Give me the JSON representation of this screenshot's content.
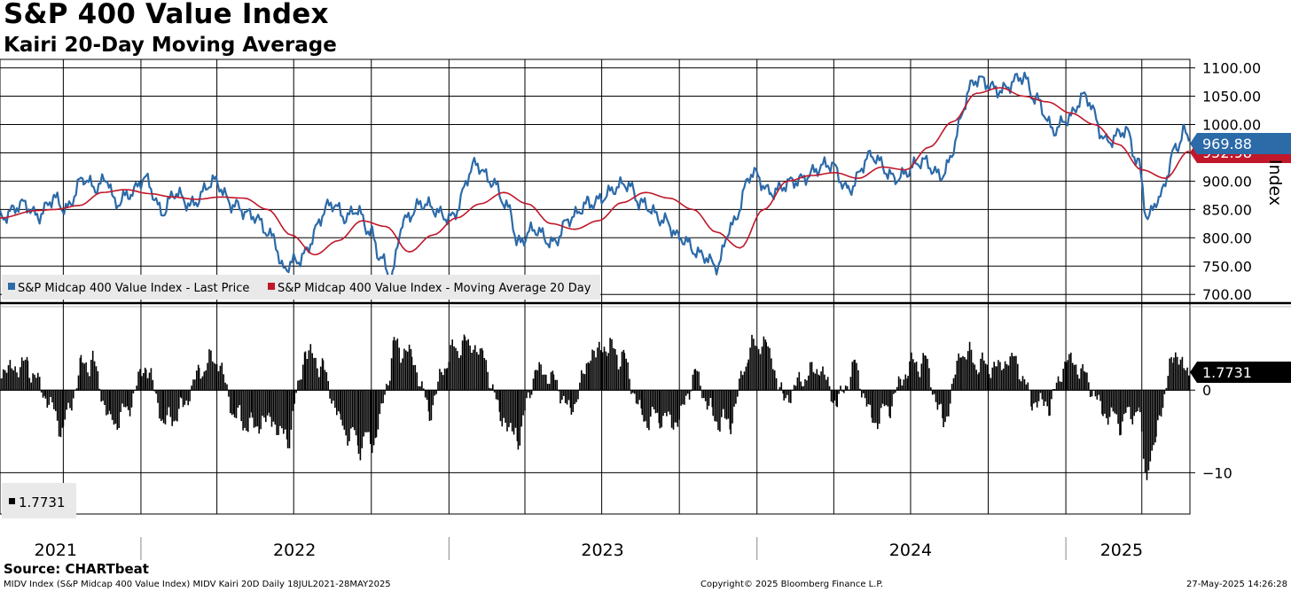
{
  "header": {
    "title": "S&P 400 Value Index",
    "subtitle": "Kairi 20-Day Moving Average"
  },
  "footer": {
    "source": "Source: CHARTbeat",
    "description": "MIDV Index (S&P Midcap 400 Value Index) MIDV Kairi 20D  Daily 18JUL2021-28MAY2025",
    "copyright": "Copyright© 2025 Bloomberg Finance L.P.",
    "timestamp": "27-May-2025 14:26:28"
  },
  "colors": {
    "price": "#2c6aa8",
    "moving_average": "#c0182a",
    "kairi": "#000000",
    "grid": "#000000"
  },
  "chart_data": [
    {
      "type": "line",
      "panel": "top",
      "ylabel": "Index",
      "ylim": [
        680,
        1115
      ],
      "xlim": [
        "2021-07-18",
        "2025-05-28"
      ],
      "yticks": [
        "1100.00",
        "1050.00",
        "1000.00",
        "950.00",
        "900.00",
        "850.00",
        "800.00",
        "750.00",
        "700.00"
      ],
      "ytick_values": [
        1100,
        1050,
        1000,
        950,
        900,
        850,
        800,
        750,
        700
      ],
      "grid": true,
      "legend": "bottom-left",
      "legend_entries": [
        "S&P Midcap 400 Value Index - Last Price",
        "S&P Midcap 400 Value Index - Moving Average 20 Day"
      ],
      "last_values": {
        "price": "969.88",
        "moving_average": "952.98"
      },
      "series": [
        {
          "name": "S&P Midcap 400 Value Index - Last Price",
          "x": [
            "2021-07-18",
            "2021-08-15",
            "2021-09-01",
            "2021-09-20",
            "2021-10-04",
            "2021-10-25",
            "2021-11-08",
            "2021-11-22",
            "2021-12-01",
            "2021-12-20",
            "2022-01-05",
            "2022-01-27",
            "2022-02-10",
            "2022-03-01",
            "2022-03-29",
            "2022-04-20",
            "2022-05-12",
            "2022-06-08",
            "2022-06-17",
            "2022-07-05",
            "2022-08-16",
            "2022-09-01",
            "2022-09-13",
            "2022-09-30",
            "2022-10-12",
            "2022-10-24",
            "2022-11-08",
            "2022-11-30",
            "2023-01-03",
            "2023-02-02",
            "2023-02-20",
            "2023-03-14",
            "2023-03-23",
            "2023-04-12",
            "2023-05-04",
            "2023-05-25",
            "2023-06-15",
            "2023-07-31",
            "2023-08-17",
            "2023-09-14",
            "2023-10-01",
            "2023-10-27",
            "2023-11-15",
            "2023-12-01",
            "2023-12-27",
            "2024-01-17",
            "2024-02-14",
            "2024-03-28",
            "2024-04-18",
            "2024-05-15",
            "2024-06-13",
            "2024-07-16",
            "2024-08-05",
            "2024-09-18",
            "2024-10-15",
            "2024-11-11",
            "2024-11-26",
            "2024-12-18",
            "2025-01-03",
            "2025-01-23",
            "2025-02-19",
            "2025-03-13",
            "2025-03-27",
            "2025-04-08",
            "2025-04-21",
            "2025-05-12",
            "2025-05-21",
            "2025-05-27"
          ],
          "values": [
            835,
            860,
            838,
            870,
            850,
            905,
            888,
            905,
            860,
            878,
            905,
            845,
            880,
            858,
            900,
            858,
            840,
            800,
            745,
            760,
            860,
            835,
            850,
            810,
            765,
            730,
            830,
            860,
            835,
            930,
            900,
            850,
            790,
            815,
            790,
            835,
            860,
            895,
            860,
            830,
            800,
            770,
            750,
            820,
            915,
            880,
            900,
            930,
            885,
            945,
            905,
            935,
            910,
            1080,
            1060,
            1085,
            1045,
            990,
            1010,
            1050,
            970,
            990,
            935,
            835,
            870,
            958,
            988,
            970
          ]
        },
        {
          "name": "S&P Midcap 400 Value Index - Moving Average 20 Day",
          "x": [
            "2021-07-18",
            "2021-08-30",
            "2021-09-21",
            "2021-10-20",
            "2021-11-16",
            "2021-12-14",
            "2022-01-11",
            "2022-02-08",
            "2022-03-08",
            "2022-04-05",
            "2022-05-03",
            "2022-05-31",
            "2022-06-28",
            "2022-07-26",
            "2022-08-23",
            "2022-09-20",
            "2022-10-18",
            "2022-11-15",
            "2022-12-13",
            "2023-01-10",
            "2023-02-07",
            "2023-03-07",
            "2023-04-04",
            "2023-05-02",
            "2023-05-30",
            "2023-06-27",
            "2023-07-25",
            "2023-08-22",
            "2023-09-19",
            "2023-10-17",
            "2023-11-14",
            "2023-12-12",
            "2024-01-09",
            "2024-02-06",
            "2024-03-05",
            "2024-04-02",
            "2024-04-30",
            "2024-05-28",
            "2024-06-25",
            "2024-07-23",
            "2024-08-20",
            "2024-09-17",
            "2024-10-15",
            "2024-11-12",
            "2024-12-10",
            "2025-01-07",
            "2025-02-04",
            "2025-03-04",
            "2025-04-01",
            "2025-04-29",
            "2025-05-27"
          ],
          "values": [
            835,
            848,
            850,
            857,
            880,
            885,
            878,
            872,
            868,
            872,
            870,
            850,
            805,
            770,
            795,
            830,
            820,
            775,
            805,
            835,
            860,
            880,
            860,
            825,
            815,
            830,
            862,
            880,
            870,
            850,
            810,
            782,
            850,
            900,
            910,
            915,
            905,
            925,
            920,
            960,
            1005,
            1055,
            1065,
            1050,
            1040,
            1020,
            1000,
            965,
            920,
            905,
            953
          ]
        }
      ]
    },
    {
      "type": "bar",
      "panel": "bottom",
      "title": "MIDV Kairi 20D",
      "ylim": [
        -15,
        10
      ],
      "yticks": [
        "0",
        "-10"
      ],
      "ytick_values": [
        0,
        -10
      ],
      "legend_entries": [
        "1.7731"
      ],
      "last_value": "1.7731",
      "series": [
        {
          "name": "MIDV Kairi 20D",
          "x": [
            "2021-07-18",
            "2021-08-20",
            "2021-09-10",
            "2021-10-01",
            "2021-10-22",
            "2021-11-05",
            "2021-11-26",
            "2021-12-17",
            "2022-01-07",
            "2022-01-28",
            "2022-02-18",
            "2022-03-11",
            "2022-04-01",
            "2022-04-22",
            "2022-05-13",
            "2022-06-03",
            "2022-06-24",
            "2022-07-15",
            "2022-08-05",
            "2022-08-26",
            "2022-09-16",
            "2022-10-07",
            "2022-10-28",
            "2022-11-18",
            "2022-12-09",
            "2022-12-30",
            "2023-01-20",
            "2023-02-10",
            "2023-03-03",
            "2023-03-24",
            "2023-04-14",
            "2023-05-05",
            "2023-05-26",
            "2023-06-16",
            "2023-07-07",
            "2023-07-28",
            "2023-08-18",
            "2023-09-08",
            "2023-09-29",
            "2023-10-20",
            "2023-11-10",
            "2023-12-01",
            "2023-12-22",
            "2024-01-12",
            "2024-02-02",
            "2024-02-23",
            "2024-03-15",
            "2024-04-05",
            "2024-04-26",
            "2024-05-17",
            "2024-06-07",
            "2024-06-28",
            "2024-07-19",
            "2024-08-09",
            "2024-08-30",
            "2024-09-20",
            "2024-10-11",
            "2024-11-01",
            "2024-11-22",
            "2024-12-13",
            "2025-01-03",
            "2025-01-24",
            "2025-02-14",
            "2025-03-07",
            "2025-03-28",
            "2025-04-07",
            "2025-04-18",
            "2025-05-09",
            "2025-05-27"
          ],
          "values": [
            2.5,
            3.5,
            -0.8,
            -5.5,
            3.2,
            4.1,
            -4.8,
            -2.5,
            3.8,
            -4.5,
            -2.8,
            2.5,
            4.6,
            -3.5,
            -5.0,
            -3.8,
            -7.0,
            5.5,
            3.0,
            -4.8,
            -7.2,
            -6.5,
            6.0,
            4.8,
            -3.2,
            4.5,
            6.5,
            5.0,
            -3.5,
            -6.8,
            3.0,
            1.5,
            -3.2,
            4.5,
            6.0,
            4.2,
            -4.0,
            -3.5,
            -4.5,
            2.5,
            -3.8,
            -4.5,
            5.5,
            6.5,
            -1.5,
            1.5,
            3.2,
            -2.0,
            3.5,
            -4.5,
            -2.0,
            3.2,
            4.0,
            -5.0,
            5.5,
            3.5,
            3.0,
            4.5,
            -1.5,
            -2.0,
            4.5,
            2.0,
            -3.0,
            -4.2,
            -2.5,
            -12.0,
            -6.0,
            5.5,
            1.7731
          ]
        }
      ]
    }
  ],
  "xaxis": {
    "year_labels": [
      "2021",
      "2022",
      "2023",
      "2024",
      "2025"
    ],
    "year_centers": [
      "2021-09-22",
      "2022-07-02",
      "2023-07-02",
      "2024-07-01",
      "2025-03-08"
    ],
    "year_starts": [
      "2022-01-01",
      "2023-01-01",
      "2024-01-01",
      "2025-01-01"
    ]
  }
}
